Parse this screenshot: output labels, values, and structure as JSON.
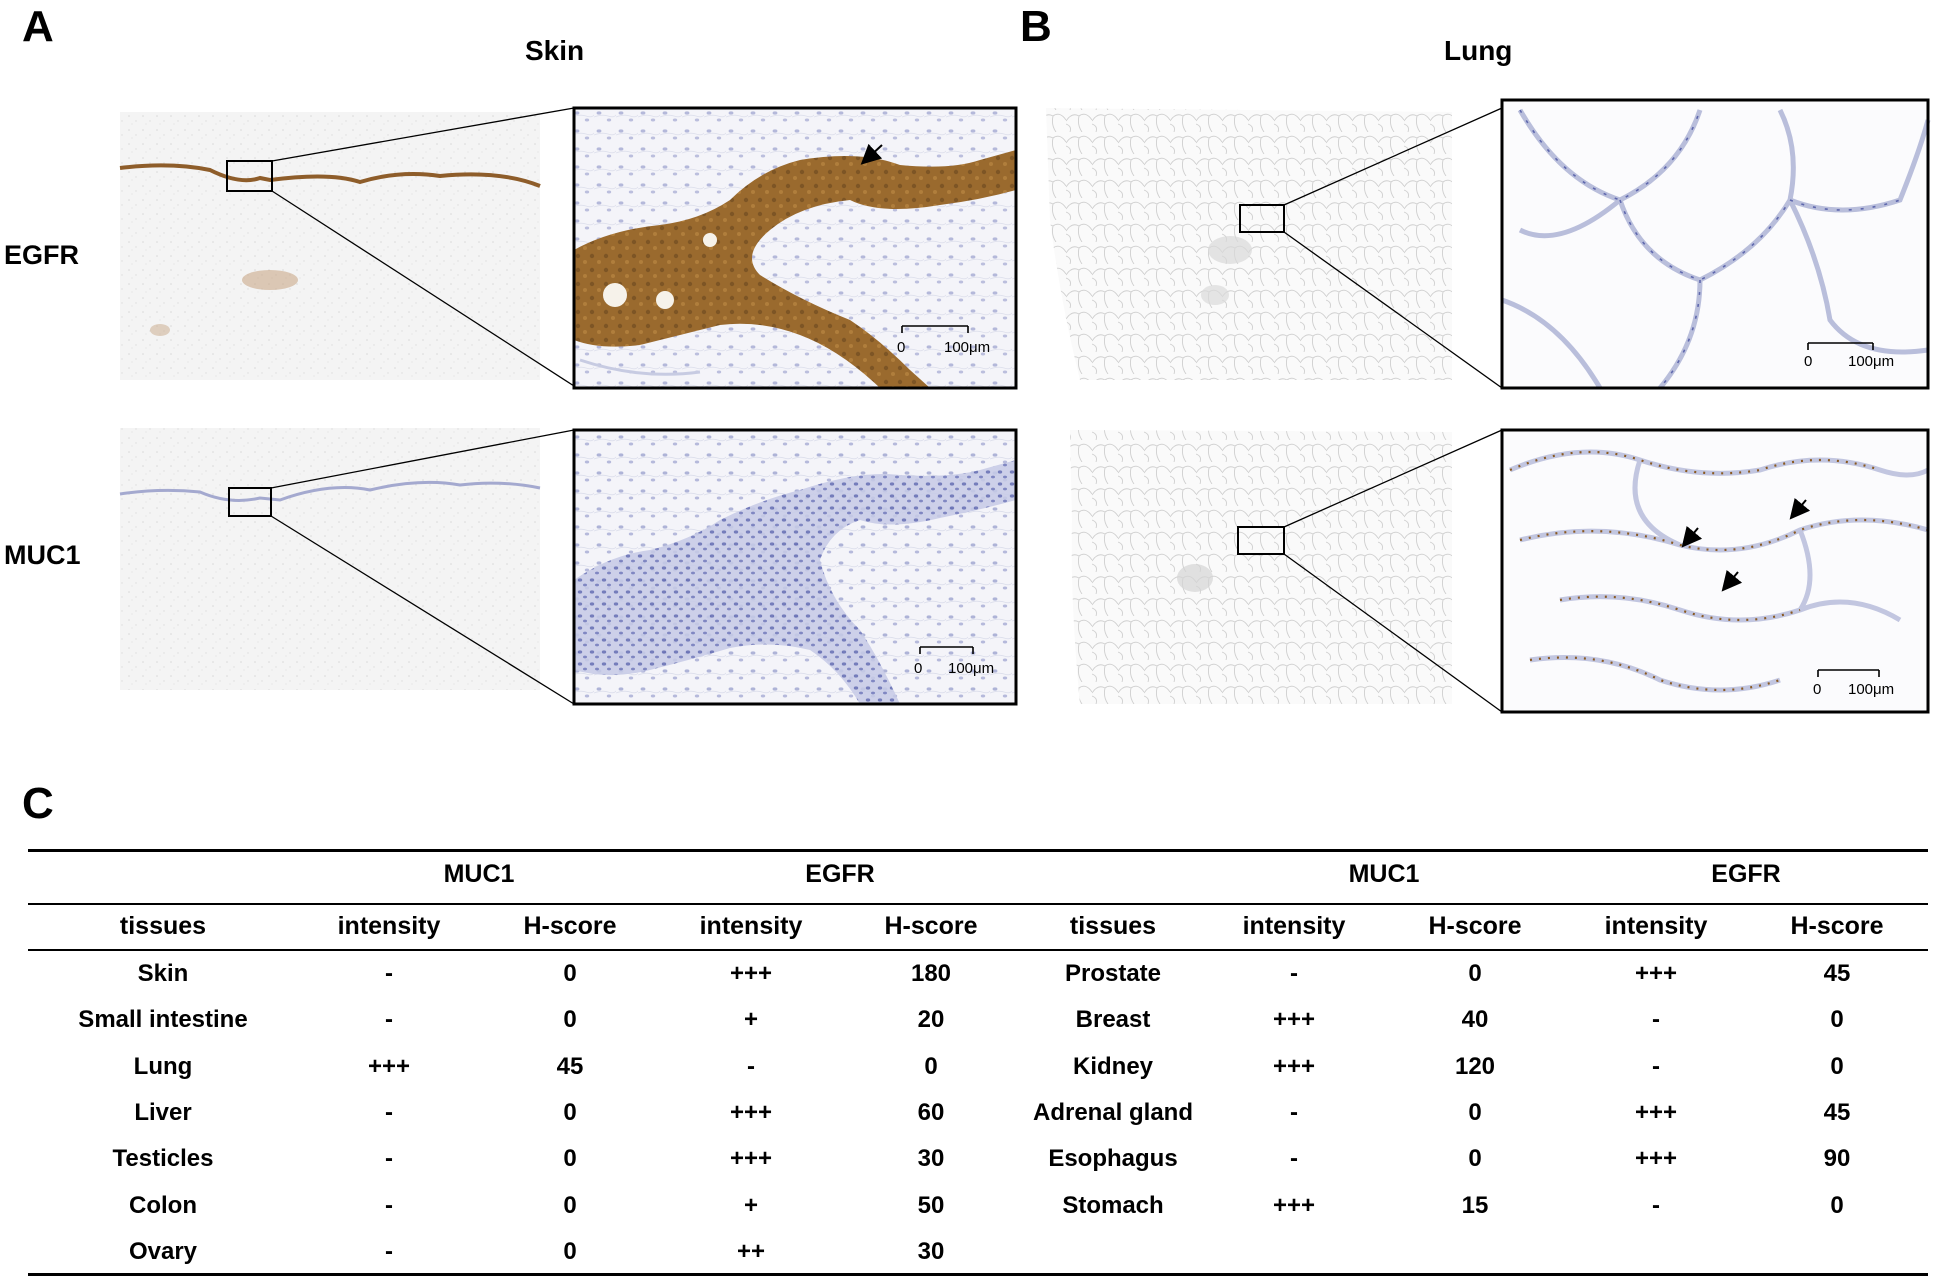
{
  "panels": {
    "a": {
      "letter": "A",
      "title": "Skin"
    },
    "b": {
      "letter": "B",
      "title": "Lung"
    },
    "c": {
      "letter": "C"
    }
  },
  "row_labels": {
    "egfr": "EGFR",
    "muc1": "MUC1"
  },
  "scale_bars": {
    "zero": "0",
    "length": "100μm"
  },
  "colors": {
    "stain_brown": "#9a6a2e",
    "stain_blue": "#8d95c8",
    "tissue_bg": "#f2f2f2",
    "line": "#000000"
  },
  "table": {
    "groups": [
      "MUC1",
      "EGFR",
      "MUC1",
      "EGFR"
    ],
    "columns": [
      "tissues",
      "intensity",
      "H-score",
      "intensity",
      "H-score",
      "tissues",
      "intensity",
      "H-score",
      "intensity",
      "H-score"
    ],
    "rows": [
      [
        "Skin",
        "-",
        "0",
        "+++",
        "180",
        "Prostate",
        "-",
        "0",
        "+++",
        "45"
      ],
      [
        "Small intestine",
        "-",
        "0",
        "+",
        "20",
        "Breast",
        "+++",
        "40",
        "-",
        "0"
      ],
      [
        "Lung",
        "+++",
        "45",
        "-",
        "0",
        "Kidney",
        "+++",
        "120",
        "-",
        "0"
      ],
      [
        "Liver",
        "-",
        "0",
        "+++",
        "60",
        "Adrenal gland",
        "-",
        "0",
        "+++",
        "45"
      ],
      [
        "Testicles",
        "-",
        "0",
        "+++",
        "30",
        "Esophagus",
        "-",
        "0",
        "+++",
        "90"
      ],
      [
        "Colon",
        "-",
        "0",
        "+",
        "50",
        "Stomach",
        "+++",
        "15",
        "-",
        "0"
      ],
      [
        "Ovary",
        "-",
        "0",
        "++",
        "30",
        "",
        "",
        "",
        "",
        ""
      ]
    ]
  }
}
